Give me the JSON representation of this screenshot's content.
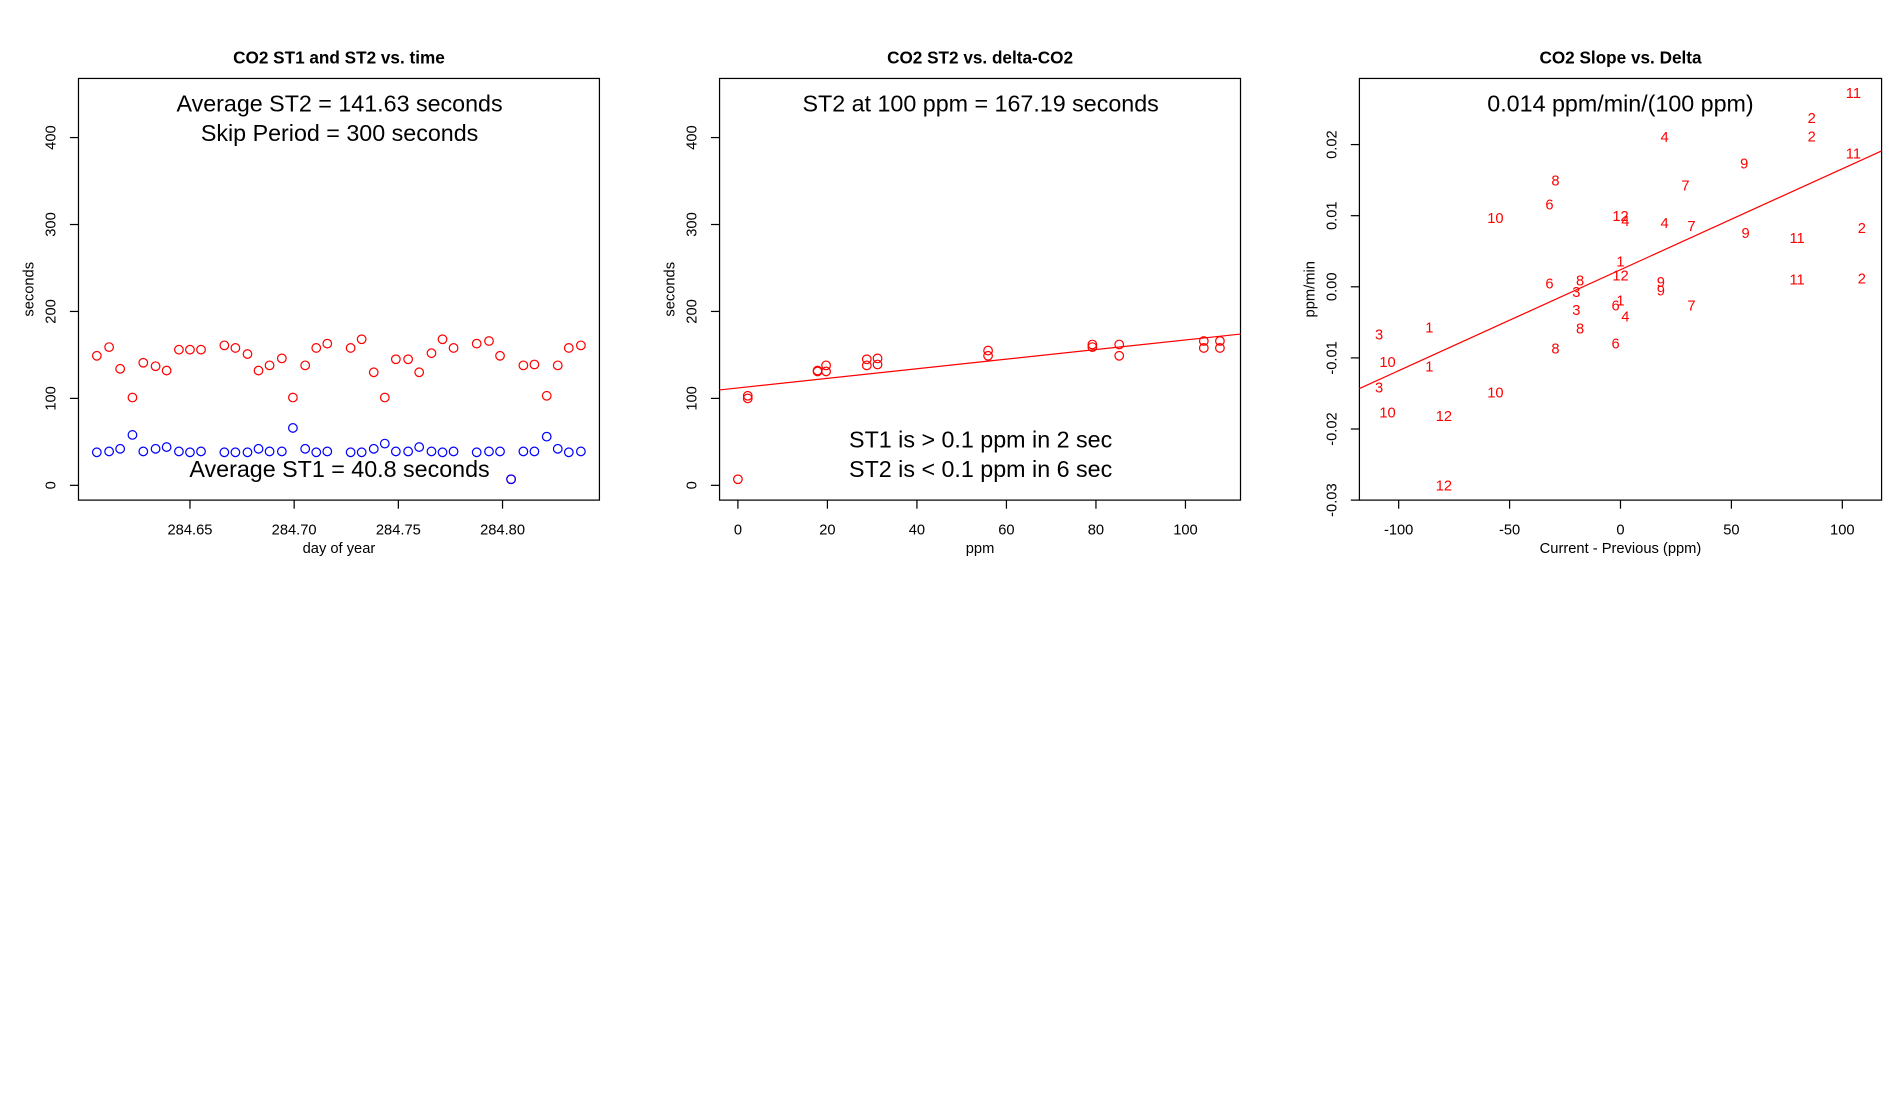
{
  "chart_data": [
    {
      "type": "scatter",
      "title": "CO2 ST1 and ST2 vs. time",
      "xlabel": "day of year",
      "ylabel": "seconds",
      "xlim": [
        284.5965,
        284.8465
      ],
      "xticks": [
        284.65,
        {
          "value": 284.7,
          "label": "284.70"
        },
        284.75,
        {
          "value": 284.8,
          "label": "284.80"
        }
      ],
      "ylim": [
        -17,
        468
      ],
      "yticks": [
        0,
        100,
        200,
        300,
        400
      ],
      "annotations": [
        "Average ST2 =  141.63  seconds",
        "Skip Period =  300  seconds",
        "Average ST1 =  40.8  seconds"
      ],
      "x": [
        284.6053,
        284.6112,
        284.6165,
        284.6224,
        284.6276,
        284.6335,
        284.6388,
        284.6447,
        284.65,
        284.6553,
        284.6665,
        284.6718,
        284.6776,
        284.6829,
        284.6882,
        284.6941,
        284.6994,
        284.7053,
        284.7106,
        284.7159,
        284.7271,
        284.7324,
        284.7382,
        284.7435,
        284.7488,
        284.7547,
        284.76,
        284.7659,
        284.7712,
        284.7765,
        284.7876,
        284.7935,
        284.7988,
        284.8041,
        284.81,
        284.8153,
        284.8212,
        284.8265,
        284.8318,
        284.8376
      ],
      "series": [
        {
          "color": "#ff0000",
          "values": [
            149,
            159,
            134,
            101,
            141,
            137,
            132,
            156,
            156,
            156,
            161,
            158,
            151,
            132,
            138,
            146,
            101,
            138,
            158,
            163,
            158,
            168,
            130,
            101,
            145,
            145,
            130,
            152,
            168,
            158,
            163,
            166,
            149,
            7,
            138,
            139,
            103,
            138,
            158,
            161
          ]
        },
        {
          "color": "#0000ff",
          "values": [
            38,
            39,
            42,
            58,
            39,
            42,
            44,
            39,
            38,
            39,
            38,
            38,
            38,
            42,
            39,
            39,
            66,
            42,
            38,
            39,
            38,
            38,
            42,
            48,
            39,
            39,
            44,
            39,
            38,
            39,
            38,
            39,
            39,
            7,
            39,
            39,
            56,
            42,
            38,
            39
          ]
        }
      ]
    },
    {
      "type": "scatter",
      "title": "CO2 ST2 vs. delta-CO2",
      "xlabel": "ppm",
      "ylabel": "seconds",
      "xlim": [
        -4.1,
        112.3
      ],
      "xticks": [
        0,
        20,
        40,
        60,
        80,
        100
      ],
      "ylim": [
        -17,
        468
      ],
      "yticks": [
        0,
        100,
        200,
        300,
        400
      ],
      "annotations": [
        "ST2 at 100 ppm =  167.19  seconds",
        "ST1 is > 0.1 ppm in 2 sec",
        "ST2 is < 0.1 ppm in 6 sec"
      ],
      "fit": {
        "intercept": 112,
        "slope": 0.552,
        "color": "#ff0000"
      },
      "x": [
        0,
        2.2,
        2.2,
        17.8,
        17.8,
        19.7,
        19.7,
        28.8,
        28.8,
        31.2,
        31.2,
        55.9,
        55.9,
        79.2,
        79.2,
        85.2,
        85.2,
        104.1,
        104.1,
        107.7,
        107.7
      ],
      "series": [
        {
          "color": "#ff0000",
          "values": [
            7,
            103,
            100,
            132,
            131,
            138,
            131,
            145,
            138,
            146,
            139,
            155,
            149,
            162,
            159,
            162,
            149,
            166,
            158,
            166,
            158
          ]
        }
      ]
    },
    {
      "type": "scatter",
      "title": "CO2 Slope vs. Delta",
      "xlabel": "Current - Previous (ppm)",
      "ylabel": "ppm/min",
      "xlim": [
        -117.7,
        117.7
      ],
      "xticks": [
        -100,
        -50,
        0,
        50,
        100
      ],
      "ylim": [
        -0.03,
        0.0293
      ],
      "yticks": [
        -0.03,
        -0.02,
        -0.01,
        {
          "value": 0,
          "label": "0.00"
        },
        0.01,
        0.02
      ],
      "annotations": [
        "0.014  ppm/min/(100 ppm)"
      ],
      "fit": {
        "intercept": 0.0024,
        "slope": 0.000142,
        "color": "#ff0000"
      },
      "x": [
        105.0,
        86.2,
        86.2,
        105.0,
        19.9,
        55.8,
        -29.3,
        29.3,
        -32.0,
        -56.4,
        0,
        2.2,
        19.9,
        32.0,
        56.4,
        79.6,
        108.8,
        0,
        0,
        -32.0,
        -18.2,
        -19.9,
        18.2,
        18.2,
        79.6,
        108.8,
        0,
        -2.2,
        32.0,
        -19.9,
        2.2,
        -18.2,
        -2.2,
        -29.3,
        -86.2,
        -108.8,
        -105.0,
        -86.2,
        -108.8,
        -56.4,
        -105.0,
        -79.6,
        -79.6
      ],
      "series": [
        {
          "color": "#ff0000",
          "values": [
            0.0271,
            0.0236,
            0.021,
            0.0186,
            0.0209,
            0.0172,
            0.0148,
            0.0141,
            0.0114,
            0.0095,
            0.0098,
            0.0091,
            0.0088,
            0.0084,
            0.0074,
            0.0067,
            0.0081,
            0.0034,
            0.0014,
            0.0003,
            0.0007,
            -0.0009,
            0.0005,
            -0.0007,
            0.0009,
            0.001,
            -0.0021,
            -0.0028,
            -0.0028,
            -0.0034,
            -0.0043,
            -0.006,
            -0.0081,
            -0.0088,
            -0.0059,
            -0.0069,
            -0.0107,
            -0.0114,
            -0.0143,
            -0.015,
            -0.0178,
            -0.0183,
            -0.0281
          ],
          "point_labels": [
            "11",
            "2",
            "2",
            "11",
            "4",
            "9",
            "8",
            "7",
            "6",
            "10",
            "12",
            "4",
            "4",
            "7",
            "9",
            "11",
            "2",
            "1",
            "12",
            "6",
            "8",
            "3",
            "9",
            "9",
            "11",
            "2",
            "1",
            "6",
            "7",
            "3",
            "4",
            "8",
            "6",
            "8",
            "1",
            "3",
            "10",
            "1",
            "3",
            "10",
            "10",
            "12",
            "12"
          ]
        }
      ]
    }
  ]
}
